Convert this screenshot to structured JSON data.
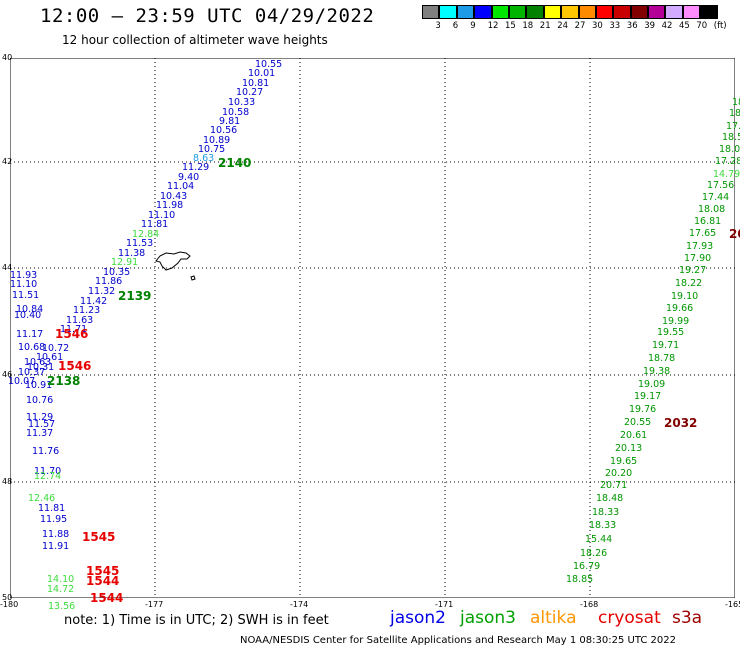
{
  "title": "12:00 — 23:59 UTC 04/29/2022",
  "subtitle": "12 hour collection of altimeter wave heights",
  "colorbar": {
    "colors": [
      "#7f7f7f",
      "#00ffff",
      "#1e9be6",
      "#0000ff",
      "#00e600",
      "#00b400",
      "#008200",
      "#ffff00",
      "#ffc800",
      "#ff8c00",
      "#ff0000",
      "#c80000",
      "#820000",
      "#b40096",
      "#d2aaff",
      "#ff8cff",
      "#000000"
    ],
    "labels": [
      "3",
      "6",
      "9",
      "12",
      "15",
      "18",
      "21",
      "24",
      "27",
      "30",
      "33",
      "36",
      "39",
      "42",
      "45",
      "70",
      "(ft)"
    ]
  },
  "map": {
    "lon_ticks": [
      "-180",
      "-177",
      "-174",
      "-171",
      "-168",
      "-165"
    ],
    "lat_ticks": [
      "40",
      "42",
      "44",
      "46",
      "48",
      "50"
    ]
  },
  "points": {
    "jason2_track_west": [
      "10.55",
      "10.01",
      "10.81",
      "10.27",
      "10.33",
      "10.58",
      "9.81",
      "10.56",
      "10.89",
      "10.75",
      "8.63",
      "11.29",
      "9.40",
      "11.04",
      "10.43",
      "11.98",
      "11.10",
      "11.81",
      "12.84",
      "11.53",
      "11.38",
      "12.91",
      "10.35",
      "11.86",
      "11.32",
      "11.42",
      "11.23",
      "11.63",
      "11.71",
      "10.72",
      "10.61",
      "10.31",
      "10.91",
      "10.76",
      "11.29",
      "11.37",
      "11.76",
      "11.70",
      "12.74",
      "11.81",
      "11.95",
      "11.88",
      "11.91",
      "14.10",
      "14.72",
      "13.56"
    ],
    "left_edge": [
      "11.93",
      "11.10",
      "11.51",
      "10.84",
      "10.40",
      "11.17",
      "10.68",
      "10.63",
      "10.37",
      "10.07",
      "11.57",
      "12.46"
    ],
    "jason3_track_east": [
      "18.3",
      "18.8",
      "17.6",
      "18.5",
      "18.07",
      "17.28",
      "14.79",
      "17.56",
      "17.44",
      "18.08",
      "16.81",
      "17.65",
      "17.93",
      "17.90",
      "19.27",
      "18.22",
      "19.10",
      "19.66",
      "19.99",
      "19.55",
      "19.71",
      "18.78",
      "19.38",
      "19.09",
      "19.17",
      "19.76",
      "20.55",
      "20.61",
      "20.13",
      "19.65",
      "20.20",
      "20.71",
      "18.48",
      "18.33",
      "18.33",
      "15.44",
      "18.26",
      "16.79",
      "18.85"
    ]
  },
  "time_labels": {
    "jason3": [
      "2140",
      "2139",
      "2138",
      "2032"
    ],
    "cryosat": [
      "1546",
      "1546",
      "1545",
      "1545",
      "1544",
      "1544"
    ],
    "s3a": [
      "20"
    ]
  },
  "legend": {
    "note": "note:  1) Time is in UTC;  2) SWH is in feet",
    "jason2": "jason2",
    "jason3": "jason3",
    "altika": "altika",
    "cryosat": "cryosat",
    "s3a": "s3a",
    "colors": {
      "jason2": "#0000e6",
      "jason3": "#00a000",
      "altika": "#ff9600",
      "cryosat": "#e60000",
      "s3a": "#a00000"
    }
  },
  "credit": "NOAA/NESDIS Center for Satellite Applications and Research    May  1 08:30:25 UTC 2022"
}
